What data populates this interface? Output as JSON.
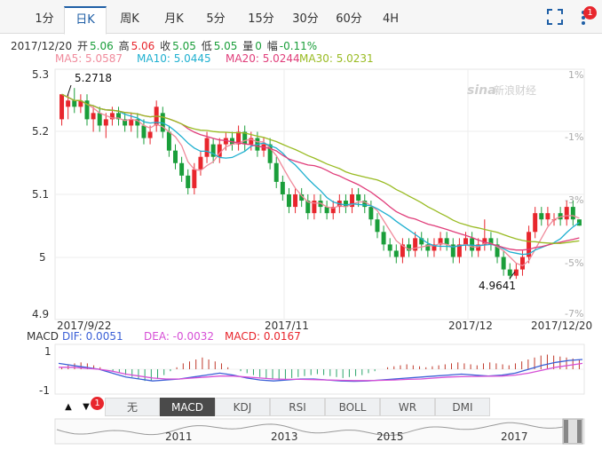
{
  "tabs": [
    {
      "label": "1分",
      "active": false
    },
    {
      "label": "日K",
      "active": true
    },
    {
      "label": "周K",
      "active": false
    },
    {
      "label": "月K",
      "active": false
    },
    {
      "label": "5分",
      "active": false
    },
    {
      "label": "15分",
      "active": false
    },
    {
      "label": "30分",
      "active": false
    },
    {
      "label": "60分",
      "active": false
    },
    {
      "label": "4H",
      "active": false
    }
  ],
  "toolbar": {
    "fullscreen_icon": "fullscreen-icon",
    "menu_icon": "more-vertical-icon",
    "notify_count": "1"
  },
  "info": {
    "date": "2017/12/20",
    "open_label": "开",
    "open": "5.06",
    "high_label": "高",
    "high": "5.06",
    "close_label": "收",
    "close": "5.05",
    "low_label": "低",
    "low": "5.05",
    "volume_label": "量",
    "volume": "0",
    "change_label": "幅",
    "change": "-0.11%"
  },
  "ma": {
    "ma5": "MA5: 5.0587",
    "ma10": "MA10: 5.0445",
    "ma20": "MA20: 5.0244",
    "ma30": "MA30: 5.0231"
  },
  "watermark": "新浪财经",
  "macd_info": {
    "name": "MACD",
    "dif": "DIF: 0.0051",
    "dea": "DEA: -0.0032",
    "macd": "MACD: 0.0167"
  },
  "indicators": [
    {
      "label": "无",
      "active": false
    },
    {
      "label": "MACD",
      "active": true
    },
    {
      "label": "KDJ",
      "active": false
    },
    {
      "label": "RSI",
      "active": false
    },
    {
      "label": "BOLL",
      "active": false
    },
    {
      "label": "WR",
      "active": false
    },
    {
      "label": "DMI",
      "active": false
    }
  ],
  "arrows": {
    "up": "▲",
    "down": "▼",
    "badge": "1"
  },
  "colors": {
    "up": "#e8262d",
    "down": "#1a9e3a",
    "ma5": "#f08a9b",
    "ma10": "#1fb0d0",
    "ma20": "#e03d7a",
    "ma30": "#99bb22",
    "dif": "#3a5fd6",
    "dea": "#d64fd6",
    "tab_active": "#1f5fa6"
  },
  "chart_data": {
    "type": "candlestick",
    "y_ticks": [
      "5.3",
      "5.2",
      "5.1",
      "5",
      "4.9"
    ],
    "ylim": [
      4.9,
      5.3
    ],
    "pct_ticks": [
      "1%",
      "-1%",
      "-3%",
      "-5%",
      "-7%"
    ],
    "x_labels": [
      "2017/9/22",
      "2017/11",
      "2017/12",
      "2017/12/20"
    ],
    "max_label": "5.2718",
    "min_label": "4.9641",
    "candles": [
      [
        5.22,
        5.26,
        5.24,
        5.21
      ],
      [
        5.24,
        5.25,
        5.26,
        5.22
      ],
      [
        5.25,
        5.24,
        5.27,
        5.23
      ],
      [
        5.24,
        5.25,
        5.26,
        5.23
      ],
      [
        5.25,
        5.22,
        5.26,
        5.21
      ],
      [
        5.22,
        5.23,
        5.24,
        5.2
      ],
      [
        5.23,
        5.21,
        5.24,
        5.2
      ],
      [
        5.21,
        5.22,
        5.23,
        5.19
      ],
      [
        5.22,
        5.23,
        5.24,
        5.21
      ],
      [
        5.23,
        5.22,
        5.24,
        5.21
      ],
      [
        5.22,
        5.21,
        5.23,
        5.2
      ],
      [
        5.21,
        5.22,
        5.23,
        5.2
      ],
      [
        5.22,
        5.21,
        5.23,
        5.19
      ],
      [
        5.21,
        5.19,
        5.22,
        5.18
      ],
      [
        5.19,
        5.2,
        5.21,
        5.18
      ],
      [
        5.21,
        5.24,
        5.25,
        5.2
      ],
      [
        5.23,
        5.2,
        5.24,
        5.19
      ],
      [
        5.2,
        5.17,
        5.21,
        5.16
      ],
      [
        5.17,
        5.15,
        5.18,
        5.14
      ],
      [
        5.15,
        5.13,
        5.16,
        5.12
      ],
      [
        5.13,
        5.11,
        5.14,
        5.1
      ],
      [
        5.11,
        5.14,
        5.15,
        5.1
      ],
      [
        5.14,
        5.16,
        5.17,
        5.13
      ],
      [
        5.16,
        5.19,
        5.2,
        5.15
      ],
      [
        5.18,
        5.16,
        5.19,
        5.15
      ],
      [
        5.16,
        5.18,
        5.19,
        5.15
      ],
      [
        5.18,
        5.19,
        5.2,
        5.17
      ],
      [
        5.19,
        5.18,
        5.2,
        5.17
      ],
      [
        5.18,
        5.2,
        5.21,
        5.17
      ],
      [
        5.2,
        5.18,
        5.21,
        5.17
      ],
      [
        5.18,
        5.19,
        5.2,
        5.17
      ],
      [
        5.19,
        5.17,
        5.2,
        5.16
      ],
      [
        5.17,
        5.18,
        5.19,
        5.16
      ],
      [
        5.18,
        5.15,
        5.19,
        5.14
      ],
      [
        5.15,
        5.12,
        5.16,
        5.11
      ],
      [
        5.12,
        5.1,
        5.13,
        5.09
      ],
      [
        5.1,
        5.08,
        5.11,
        5.07
      ],
      [
        5.08,
        5.1,
        5.11,
        5.07
      ],
      [
        5.1,
        5.09,
        5.11,
        5.08
      ],
      [
        5.09,
        5.07,
        5.1,
        5.06
      ],
      [
        5.07,
        5.09,
        5.1,
        5.06
      ],
      [
        5.09,
        5.08,
        5.1,
        5.07
      ],
      [
        5.08,
        5.07,
        5.09,
        5.06
      ],
      [
        5.07,
        5.08,
        5.09,
        5.06
      ],
      [
        5.08,
        5.09,
        5.1,
        5.07
      ],
      [
        5.09,
        5.08,
        5.1,
        5.07
      ],
      [
        5.08,
        5.1,
        5.11,
        5.07
      ],
      [
        5.1,
        5.09,
        5.11,
        5.08
      ],
      [
        5.09,
        5.08,
        5.1,
        5.07
      ],
      [
        5.08,
        5.06,
        5.09,
        5.05
      ],
      [
        5.06,
        5.04,
        5.07,
        5.03
      ],
      [
        5.04,
        5.02,
        5.05,
        5.01
      ],
      [
        5.02,
        5.01,
        5.03,
        5.0
      ],
      [
        5.01,
        5.0,
        5.02,
        4.99
      ],
      [
        5.0,
        5.02,
        5.03,
        4.99
      ],
      [
        5.02,
        5.01,
        5.03,
        5.0
      ],
      [
        5.01,
        5.03,
        5.04,
        5.0
      ],
      [
        5.03,
        5.02,
        5.04,
        5.01
      ],
      [
        5.02,
        5.01,
        5.03,
        5.0
      ],
      [
        5.01,
        5.02,
        5.03,
        5.0
      ],
      [
        5.02,
        5.03,
        5.04,
        5.01
      ],
      [
        5.03,
        5.02,
        5.04,
        5.01
      ],
      [
        5.02,
        5.0,
        5.03,
        4.99
      ],
      [
        5.0,
        5.02,
        5.03,
        4.99
      ],
      [
        5.02,
        5.03,
        5.04,
        5.01
      ],
      [
        5.03,
        5.01,
        5.04,
        5.0
      ],
      [
        5.01,
        5.02,
        5.03,
        5.0
      ],
      [
        5.02,
        5.03,
        5.06,
        5.01
      ],
      [
        5.03,
        5.02,
        5.04,
        5.01
      ],
      [
        5.02,
        5.0,
        5.03,
        4.99
      ],
      [
        5.0,
        4.98,
        5.01,
        4.97
      ],
      [
        4.98,
        4.97,
        4.99,
        4.964
      ],
      [
        4.97,
        4.98,
        4.99,
        4.965
      ],
      [
        4.98,
        5.0,
        5.01,
        4.97
      ],
      [
        5.0,
        5.04,
        5.05,
        4.99
      ],
      [
        5.04,
        5.07,
        5.08,
        5.03
      ],
      [
        5.07,
        5.06,
        5.08,
        5.05
      ],
      [
        5.06,
        5.07,
        5.08,
        5.05
      ],
      [
        5.06,
        5.06,
        5.07,
        5.05
      ],
      [
        5.07,
        5.06,
        5.08,
        5.05
      ],
      [
        5.06,
        5.08,
        5.09,
        5.05
      ],
      [
        5.08,
        5.06,
        5.09,
        5.05
      ],
      [
        5.06,
        5.05,
        5.06,
        5.05
      ]
    ],
    "macd": {
      "y_ticks": [
        "1",
        "-1"
      ],
      "hist": [
        0.1,
        0.2,
        0.3,
        0.35,
        0.3,
        0.2,
        0.1,
        0.0,
        -0.1,
        -0.2,
        -0.3,
        -0.4,
        -0.5,
        -0.6,
        -0.6,
        -0.5,
        -0.3,
        -0.1,
        0.1,
        0.3,
        0.4,
        0.5,
        0.6,
        0.5,
        0.4,
        0.3,
        0.1,
        0.0,
        -0.1,
        -0.2,
        -0.3,
        -0.4,
        -0.45,
        -0.5,
        -0.55,
        -0.5,
        -0.45,
        -0.4,
        -0.35,
        -0.3,
        -0.25,
        -0.3,
        -0.35,
        -0.4,
        -0.45,
        -0.4,
        -0.35,
        -0.3,
        -0.2,
        -0.1,
        0.0,
        0.1,
        0.15,
        0.2,
        0.25,
        0.2,
        0.15,
        0.1,
        0.15,
        0.2,
        0.25,
        0.3,
        0.35,
        0.3,
        0.25,
        0.2,
        0.3,
        0.35,
        0.3,
        0.25,
        0.2,
        0.3,
        0.4,
        0.5,
        0.6,
        0.7,
        0.75,
        0.7,
        0.65,
        0.6,
        0.55,
        0.5
      ],
      "dif": [
        0.3,
        0.2,
        0.1,
        0.0,
        -0.2,
        -0.4,
        -0.5,
        -0.6,
        -0.55,
        -0.5,
        -0.4,
        -0.3,
        -0.2,
        -0.3,
        -0.45,
        -0.55,
        -0.6,
        -0.55,
        -0.5,
        -0.5,
        -0.55,
        -0.6,
        -0.62,
        -0.6,
        -0.55,
        -0.5,
        -0.45,
        -0.4,
        -0.35,
        -0.3,
        -0.25,
        -0.3,
        -0.35,
        -0.3,
        -0.2,
        0.0,
        0.2,
        0.35,
        0.45,
        0.5
      ],
      "dea": [
        0.1,
        0.1,
        0.05,
        0.0,
        -0.1,
        -0.25,
        -0.35,
        -0.45,
        -0.5,
        -0.5,
        -0.45,
        -0.4,
        -0.35,
        -0.35,
        -0.4,
        -0.45,
        -0.5,
        -0.52,
        -0.52,
        -0.53,
        -0.55,
        -0.57,
        -0.58,
        -0.58,
        -0.57,
        -0.55,
        -0.52,
        -0.5,
        -0.45,
        -0.4,
        -0.38,
        -0.37,
        -0.36,
        -0.35,
        -0.3,
        -0.2,
        -0.05,
        0.1,
        0.2,
        0.3
      ]
    },
    "navigator_labels": [
      "2011",
      "2013",
      "2015",
      "2017"
    ]
  }
}
